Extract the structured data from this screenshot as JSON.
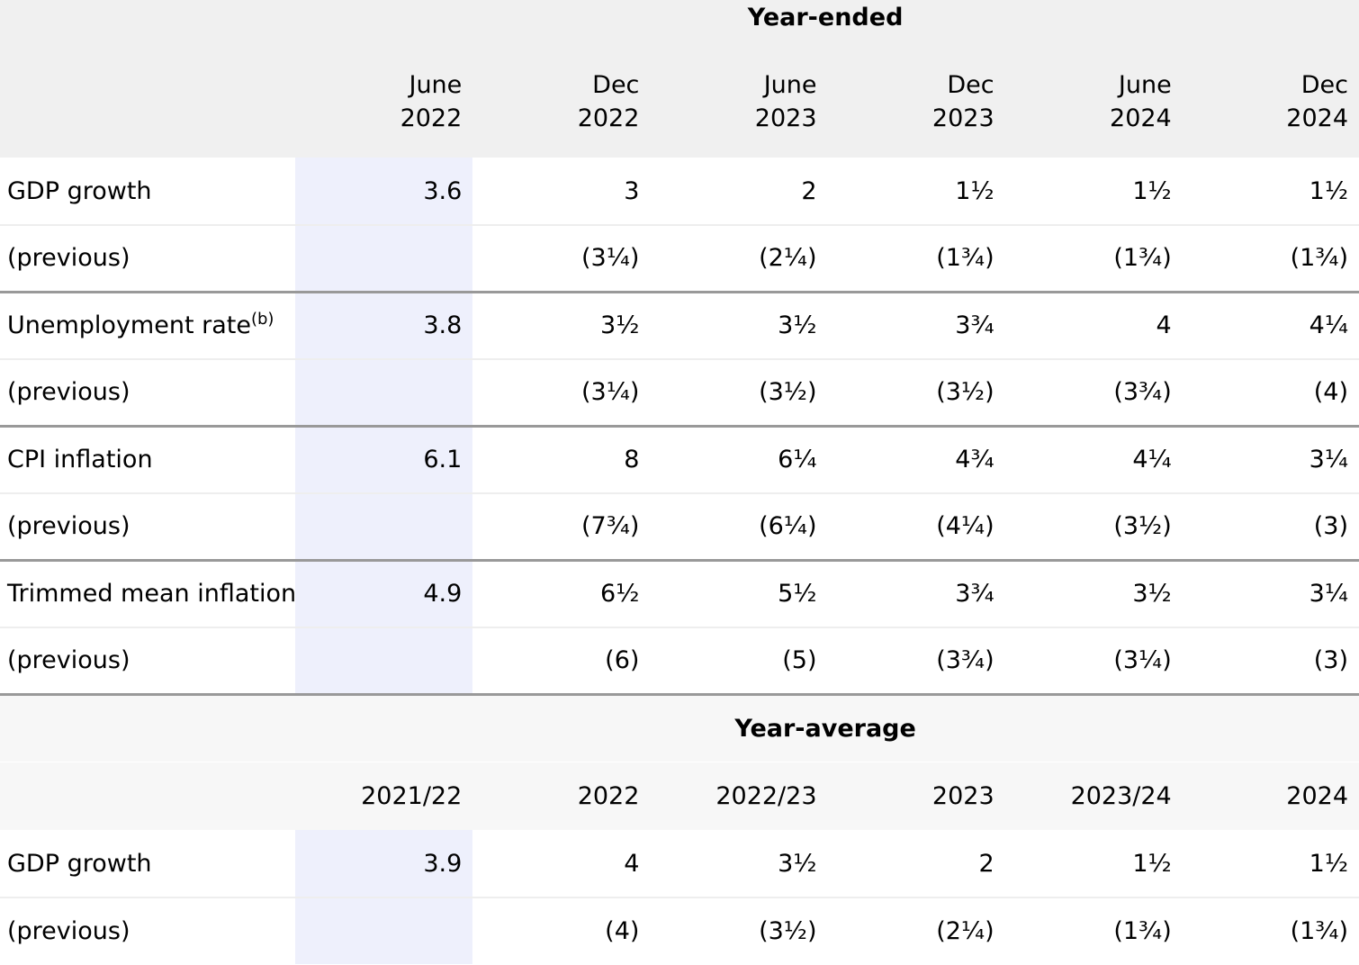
{
  "year_ended": {
    "title": "Year-ended",
    "columns": [
      {
        "month": "June",
        "year": "2022"
      },
      {
        "month": "Dec",
        "year": "2022"
      },
      {
        "month": "June",
        "year": "2023"
      },
      {
        "month": "Dec",
        "year": "2023"
      },
      {
        "month": "June",
        "year": "2024"
      },
      {
        "month": "Dec",
        "year": "2024"
      }
    ],
    "rows": [
      {
        "label": "GDP growth",
        "note": "",
        "values": [
          "3.6",
          "3",
          "2",
          "1½",
          "1½",
          "1½"
        ]
      },
      {
        "label": "(previous)",
        "note": "",
        "values": [
          "",
          "(3¼)",
          "(2¼)",
          "(1¾)",
          "(1¾)",
          "(1¾)"
        ]
      },
      {
        "label": "Unemployment rate",
        "note": "(b)",
        "values": [
          "3.8",
          "3½",
          "3½",
          "3¾",
          "4",
          "4¼"
        ]
      },
      {
        "label": "(previous)",
        "note": "",
        "values": [
          "",
          "(3¼)",
          "(3½)",
          "(3½)",
          "(3¾)",
          "(4)"
        ]
      },
      {
        "label": "CPI inflation",
        "note": "",
        "values": [
          "6.1",
          "8",
          "6¼",
          "4¾",
          "4¼",
          "3¼"
        ]
      },
      {
        "label": "(previous)",
        "note": "",
        "values": [
          "",
          "(7¾)",
          "(6¼)",
          "(4¼)",
          "(3½)",
          "(3)"
        ]
      },
      {
        "label": "Trimmed mean inflation",
        "note": "",
        "values": [
          "4.9",
          "6½",
          "5½",
          "3¾",
          "3½",
          "3¼"
        ]
      },
      {
        "label": "(previous)",
        "note": "",
        "values": [
          "",
          "(6)",
          "(5)",
          "(3¾)",
          "(3¼)",
          "(3)"
        ]
      }
    ]
  },
  "year_average": {
    "title": "Year-average",
    "columns": [
      "2021/22",
      "2022",
      "2022/23",
      "2023",
      "2023/24",
      "2024"
    ],
    "rows": [
      {
        "label": "GDP growth",
        "values": [
          "3.9",
          "4",
          "3½",
          "2",
          "1½",
          "1½"
        ]
      },
      {
        "label": "(previous)",
        "values": [
          "",
          "(4)",
          "(3½)",
          "(2¼)",
          "(1¾)",
          "(1¾)"
        ]
      }
    ]
  }
}
